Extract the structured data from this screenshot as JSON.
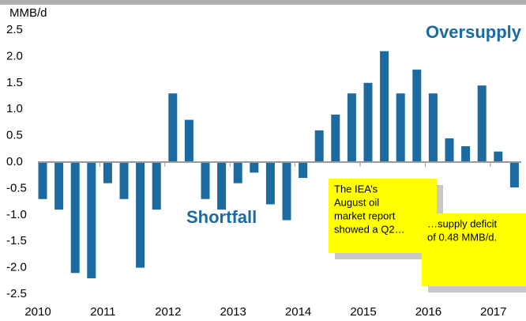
{
  "chart_data": {
    "type": "bar",
    "y_label": "MMB/d",
    "categories": [
      "2010",
      null,
      null,
      null,
      "2011",
      null,
      null,
      null,
      "2012",
      null,
      null,
      null,
      "2013",
      null,
      null,
      null,
      "2014",
      null,
      null,
      null,
      "2015",
      null,
      null,
      null,
      "2016",
      null,
      null,
      null,
      "2017",
      null
    ],
    "values": [
      -0.7,
      -0.9,
      -2.1,
      -2.2,
      -0.4,
      -0.7,
      -2.0,
      -0.9,
      1.3,
      0.8,
      -0.7,
      -0.9,
      -0.4,
      -0.2,
      -0.8,
      -1.1,
      -0.3,
      0.6,
      0.9,
      1.3,
      1.5,
      2.1,
      1.3,
      1.75,
      1.3,
      0.45,
      0.3,
      1.45,
      0.2,
      -0.48
    ],
    "color": "#1b6aa0",
    "ylim": [
      -2.5,
      2.5
    ],
    "yticks": [
      2.5,
      {
        "value": 2.0,
        "label": "2.0"
      },
      1.5,
      {
        "value": 1.0,
        "label": "1.0"
      },
      0.5,
      {
        "value": 0.0,
        "label": "0.0"
      },
      -0.5,
      {
        "value": -1.0,
        "label": "-1.0"
      },
      -1.5,
      {
        "value": -2.0,
        "label": "-2.0"
      },
      -2.5
    ],
    "annotations": {
      "oversupply": "Oversupply",
      "shortfall": "Shortfall",
      "callout_1": [
        "The IEA’s",
        "August oil",
        "market report",
        "showed a Q2…"
      ],
      "callout_2": [
        "…supply deficit",
        "of 0.48 MMB/d."
      ]
    }
  }
}
